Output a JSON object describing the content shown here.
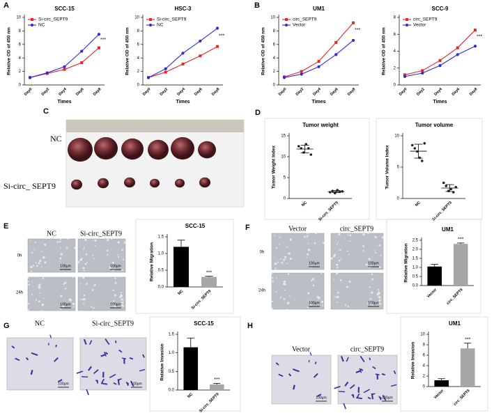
{
  "chart_data": [
    {
      "type": "line",
      "title": "SCC-15",
      "xlabel": "Times",
      "ylabel": "Relative OD of 450 nm",
      "categories": [
        "Day0",
        "Day2",
        "Day4",
        "Day6",
        "Day8"
      ],
      "series": [
        {
          "name": "Si-circ_SEPT9",
          "color": "#e8252a",
          "marker": "square",
          "values": [
            1.1,
            1.7,
            2.3,
            3.3,
            5.5
          ]
        },
        {
          "name": "NC",
          "color": "#2a2ae0",
          "marker": "circle",
          "values": [
            1.1,
            1.8,
            2.7,
            5.0,
            7.5
          ]
        }
      ],
      "ylim": [
        0,
        10
      ],
      "yticks": [
        0,
        2,
        4,
        6,
        8,
        10
      ],
      "annotation": "***"
    },
    {
      "type": "line",
      "title": "HSC-3",
      "xlabel": "Times",
      "ylabel": "Relative OD of 450 nm",
      "categories": [
        "Day0",
        "Day2",
        "Day4",
        "Day6",
        "Day8"
      ],
      "series": [
        {
          "name": "Si-circ_SEPT9",
          "color": "#e8252a",
          "marker": "square",
          "values": [
            1.1,
            1.9,
            3.1,
            4.3,
            5.7
          ]
        },
        {
          "name": "NC",
          "color": "#2a2ae0",
          "marker": "circle",
          "values": [
            1.1,
            2.4,
            4.7,
            6.5,
            8.4
          ]
        }
      ],
      "ylim": [
        0,
        10
      ],
      "yticks": [
        0,
        2,
        4,
        6,
        8,
        10
      ],
      "annotation": "***"
    },
    {
      "type": "line",
      "title": "UM1",
      "xlabel": "Times",
      "ylabel": "Relative OD of 450 nm",
      "categories": [
        "Day0",
        "Day2",
        "Day4",
        "Day6",
        "Day8"
      ],
      "series": [
        {
          "name": "circ_SEPT9",
          "color": "#e8252a",
          "marker": "square",
          "values": [
            1.2,
            2.0,
            3.5,
            6.3,
            9.2
          ]
        },
        {
          "name": "Vector",
          "color": "#2a2ae0",
          "marker": "circle",
          "values": [
            1.1,
            1.6,
            2.7,
            4.5,
            6.6
          ]
        }
      ],
      "ylim": [
        0,
        10
      ],
      "yticks": [
        0,
        2,
        4,
        6,
        8,
        10
      ],
      "annotation": "***"
    },
    {
      "type": "line",
      "title": "SCC-9",
      "xlabel": "Times",
      "ylabel": "Relative OD of 450 nm",
      "categories": [
        "Day0",
        "Day2",
        "Day4",
        "Day6",
        "Day8"
      ],
      "series": [
        {
          "name": "circ_SEPT9",
          "color": "#e8252a",
          "marker": "square",
          "values": [
            1.2,
            1.7,
            2.9,
            4.4,
            6.5
          ]
        },
        {
          "name": "Vector",
          "color": "#2a2ae0",
          "marker": "circle",
          "values": [
            1.0,
            1.4,
            2.3,
            3.6,
            4.6
          ]
        }
      ],
      "ylim": [
        0,
        8
      ],
      "yticks": [
        0,
        2,
        4,
        6,
        8
      ],
      "annotation": "***"
    },
    {
      "type": "dot",
      "title": "Tumor weight",
      "ylabel": "Tumor Weight Index",
      "categories": [
        "NC",
        "Si-circ_SEPT9"
      ],
      "values": [
        [
          12.5,
          12,
          11,
          13,
          12,
          10.5
        ],
        [
          1.5,
          1.8,
          1.3,
          2,
          1.6,
          1.7
        ]
      ],
      "ylim": [
        0,
        15
      ],
      "yticks": [
        0,
        5,
        10,
        15
      ]
    },
    {
      "type": "dot",
      "title": "Tumor volume",
      "ylabel": "Tumor Volume Index",
      "categories": [
        "NC",
        "Si-circ_SEPT9"
      ],
      "values": [
        [
          8.5,
          8,
          7.5,
          6.5,
          6,
          8.8
        ],
        [
          2.5,
          2,
          1.2,
          1.5,
          1,
          1.8
        ]
      ],
      "ylim": [
        0,
        10
      ],
      "yticks": [
        0,
        5,
        10
      ]
    },
    {
      "type": "bar",
      "title": "SCC-15",
      "ylabel": "Relative Migration",
      "categories": [
        "NC",
        "Si-circ_SEPT9"
      ],
      "values": [
        1.2,
        0.3
      ],
      "errors": [
        0.2,
        0.02
      ],
      "colors": [
        "#000000",
        "#a6a6a6"
      ],
      "ylim": [
        0,
        1.5
      ],
      "yticks": [
        {
          "value": 0,
          "label": "0.0"
        },
        {
          "value": 0.5,
          "label": "0.5"
        },
        {
          "value": 1,
          "label": "1.0"
        },
        {
          "value": 1.5,
          "label": "1.5"
        }
      ],
      "annotation": "***"
    },
    {
      "type": "bar",
      "title": "UM1",
      "ylabel": "Relative Migration",
      "categories": [
        "Vector",
        "circ_SEPT9"
      ],
      "values": [
        1.05,
        2.3
      ],
      "errors": [
        0.12,
        0.05
      ],
      "colors": [
        "#000000",
        "#a6a6a6"
      ],
      "ylim": [
        0,
        2.5
      ],
      "yticks": [
        {
          "value": 0,
          "label": "0.0"
        },
        {
          "value": 0.5,
          "label": "0.5"
        },
        {
          "value": 1,
          "label": "1.0"
        },
        {
          "value": 1.5,
          "label": "1.5"
        },
        {
          "value": 2,
          "label": "2.0"
        },
        {
          "value": 2.5,
          "label": "2.5"
        }
      ],
      "annotation": "***"
    },
    {
      "type": "bar",
      "title": "SCC-15",
      "ylabel": "Relative Invasion",
      "categories": [
        "NC",
        "Si-circ_SEPT9"
      ],
      "values": [
        1.15,
        0.15
      ],
      "errors": [
        0.25,
        0.03
      ],
      "colors": [
        "#000000",
        "#a6a6a6"
      ],
      "ylim": [
        0,
        1.5
      ],
      "yticks": [
        {
          "value": 0,
          "label": "0.0"
        },
        {
          "value": 0.5,
          "label": "0.5"
        },
        {
          "value": 1,
          "label": "1.0"
        },
        {
          "value": 1.5,
          "label": "1.5"
        }
      ],
      "annotation": "***"
    },
    {
      "type": "bar",
      "title": "UM1",
      "ylabel": "Relative Invasion",
      "categories": [
        "Vector",
        "circ_SEPT9"
      ],
      "values": [
        1.2,
        7.3
      ],
      "errors": [
        0.3,
        1.0
      ],
      "colors": [
        "#000000",
        "#a6a6a6"
      ],
      "ylim": [
        0,
        10
      ],
      "yticks": [
        0,
        2,
        4,
        6,
        8,
        10
      ],
      "annotation": "***"
    }
  ],
  "panel_letters": [
    "A",
    "B",
    "C",
    "D",
    "E",
    "F",
    "G",
    "H"
  ],
  "image_labels": {
    "c": [
      "NC",
      "Si-circ_ SEPT9"
    ],
    "e": [
      "NC",
      "Si-circ_SEPT9"
    ],
    "f": [
      "Vector",
      "circ_SEPT9"
    ],
    "g": [
      "NC",
      "Si-circ_SEPT9"
    ],
    "h": [
      "Vector",
      "circ_SEPT9"
    ]
  },
  "time_labels": [
    "0h",
    "24h"
  ],
  "scale_bar": "100μm"
}
